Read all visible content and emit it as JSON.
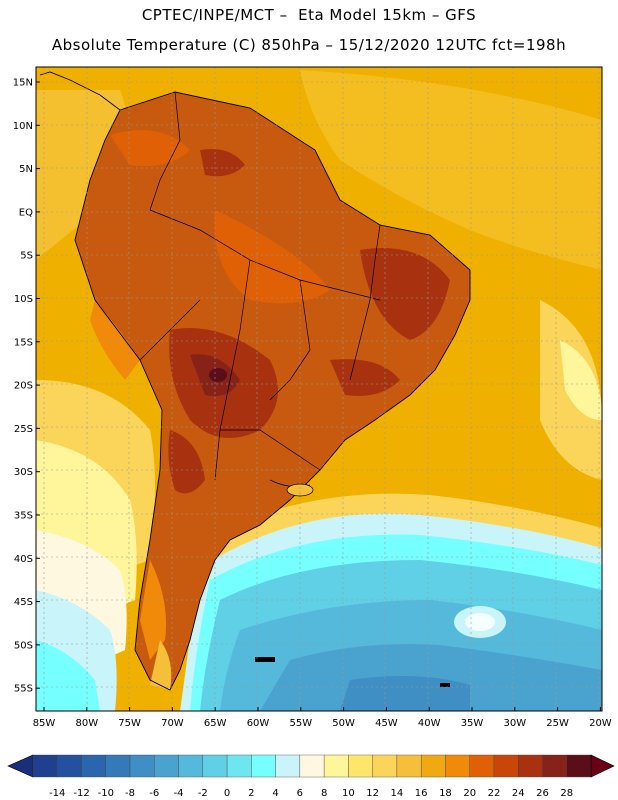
{
  "header": {
    "line1": "CPTEC/INPE/MCT –  Eta Model 15km – GFS",
    "line2": "Absolute Temperature (C) 850hPa – 15/12/2020 12UTC fct=198h"
  },
  "map": {
    "lat_labels": [
      "15N",
      "10N",
      "5N",
      "EQ",
      "5S",
      "10S",
      "15S",
      "20S",
      "25S",
      "30S",
      "35S",
      "40S",
      "45S",
      "50S",
      "55S"
    ],
    "lon_labels": [
      "85W",
      "80W",
      "75W",
      "70W",
      "65W",
      "60W",
      "55W",
      "50W",
      "45W",
      "40W",
      "35W",
      "30W",
      "25W",
      "20W"
    ],
    "ocean_color": "#f0b000",
    "land_color": "#c85a10"
  },
  "colorbar": {
    "labels": [
      "-14",
      "-12",
      "-10",
      "-8",
      "-6",
      "-4",
      "-2",
      "0",
      "2",
      "4",
      "6",
      "8",
      "10",
      "12",
      "14",
      "16",
      "18",
      "20",
      "22",
      "24",
      "26",
      "28"
    ],
    "colors": [
      "#1f3f8f",
      "#24519f",
      "#2a66ad",
      "#3479b8",
      "#3f8ec4",
      "#4aa3cf",
      "#55b9db",
      "#5fd0e6",
      "#6ee6f0",
      "#75ffff",
      "#c8f4fa",
      "#fff8e0",
      "#fff59a",
      "#ffe66a",
      "#fbd45a",
      "#f5bf3a",
      "#f1a912",
      "#f08a08",
      "#e06005",
      "#c94608",
      "#a83210",
      "#862218",
      "#5a0f18"
    ],
    "under_color": "#1a2f7a",
    "over_color": "#6a0016"
  }
}
